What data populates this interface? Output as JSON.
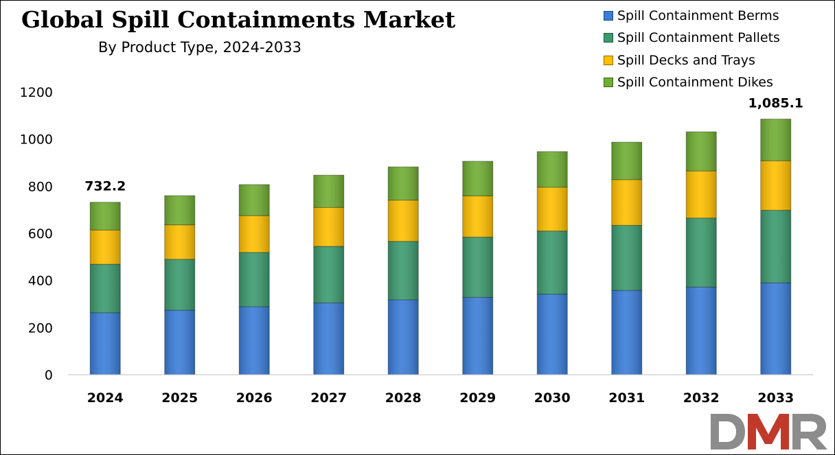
{
  "chart_data": {
    "type": "bar",
    "stacked": true,
    "title": "Global Spill Containments Market",
    "subtitle": "By Product Type, 2024-2033",
    "xlabel": "",
    "ylabel": "",
    "ylim": [
      0,
      1200
    ],
    "yticks": [
      "0",
      "200",
      "400",
      "600",
      "800",
      "1000",
      "1200"
    ],
    "grid": false,
    "legend_position": "top-right",
    "categories": [
      "2024",
      "2025",
      "2026",
      "2027",
      "2028",
      "2029",
      "2030",
      "2031",
      "2032",
      "2033"
    ],
    "series": [
      {
        "name": "Spill Containment Berms",
        "color": "#3B7DD8",
        "values": [
          263,
          274,
          289,
          305,
          318,
          328,
          342,
          358,
          372,
          390
        ]
      },
      {
        "name": "Spill Containment Pallets",
        "color": "#3C9A6E",
        "values": [
          206,
          216,
          230,
          240,
          248,
          256,
          268,
          276,
          293,
          308
        ]
      },
      {
        "name": "Spill Decks and Trays",
        "color": "#FFC000",
        "values": [
          145,
          146,
          156,
          165,
          175,
          175,
          186,
          194,
          200,
          210
        ]
      },
      {
        "name": "Spill Containment Dikes",
        "color": "#70AD33",
        "values": [
          118,
          124,
          132,
          137,
          141,
          147,
          151,
          159,
          166,
          177
        ]
      }
    ],
    "annotations": [
      {
        "category": "2024",
        "text": "732.2"
      },
      {
        "category": "2033",
        "text": "1,085.1"
      }
    ]
  },
  "logo": {
    "text": "DMR",
    "colors": [
      "#8C8C8C",
      "#C0392B"
    ]
  }
}
